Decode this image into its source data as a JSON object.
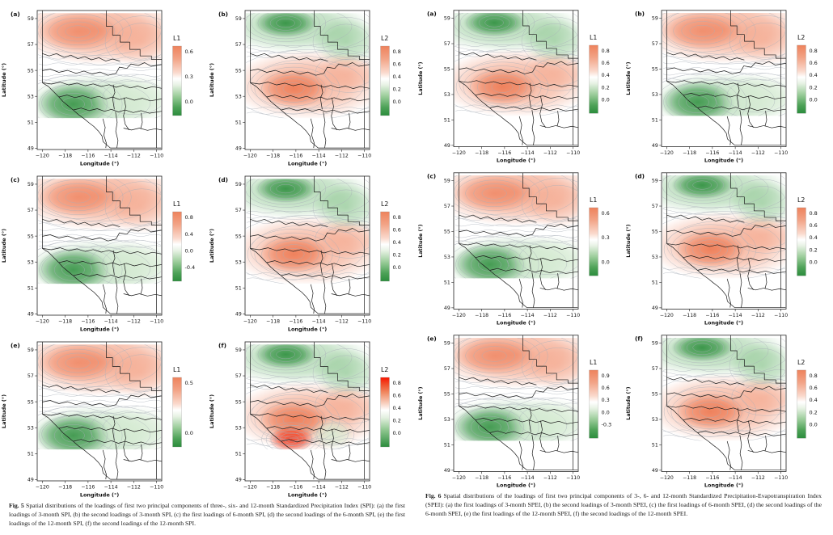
{
  "page": {
    "background": "#ffffff"
  },
  "colors": {
    "warm": "#F2997A",
    "warm_strong": "#EC6E44",
    "hot_red": "#F52000",
    "green": "#7FBF83",
    "green_deep": "#2E8F3E",
    "green_light": "#D8ECD4",
    "contour_line": "#A9AFB8",
    "boundary_line": "#1B1B1B",
    "axis": "#222222",
    "colorbar_normal": [
      "#EE825C",
      "#F2A386",
      "#FAD9CC",
      "#FFFFFF",
      "#E7F2E4",
      "#9CCD9B",
      "#4EA258",
      "#2B8C3C"
    ],
    "colorbar_hot": [
      "#F81500",
      "#F04F2A",
      "#F08A63",
      "#F7C9B7",
      "#FFFFFF",
      "#E3F0E0",
      "#96CA96",
      "#2B8C3C"
    ]
  },
  "axes": {
    "xlabel": "Longitude (°)",
    "ylabel": "Latitude (°)",
    "xticks": [
      "−120",
      "−118",
      "−116",
      "−114",
      "−112",
      "−110"
    ],
    "yticks": [
      "49",
      "51",
      "53",
      "55",
      "57",
      "59"
    ],
    "xtick_values": [
      -120,
      -118,
      -116,
      -114,
      -112,
      -110
    ],
    "ytick_values": [
      49,
      51,
      53,
      55,
      57,
      59
    ]
  },
  "chart_data": {
    "type": "heatmap",
    "note": "Two figures of six contour-map panels each; loading fields over longitude -120..-110, latitude 49..59"
  },
  "figures": [
    {
      "id": "fig5",
      "caption_label": "Fig. 5",
      "caption_text": "Spatial distributions of the loadings of first two principal components of three-, six- and 12-month Standardized Precipitation Index (SPI): (a) the first loadings of 3-month SPI, (b) the second loadings of 3-month SPI, (c) the first loadings of 6-month SPI, (d) the second loadings of the 6-month SPI, (e) the first loadings of the 12-month SPI, (f) the second loadings of the 12-month SPI.",
      "panels": [
        {
          "label": "(a)",
          "legend_title": "L1",
          "colorbar_ticks": [
            "0.6",
            "0.3",
            "0.0"
          ],
          "pattern": "warm-north",
          "cbar_style": "normal"
        },
        {
          "label": "(b)",
          "legend_title": "L2",
          "colorbar_ticks": [
            "0.8",
            "0.6",
            "0.4",
            "0.2",
            "0.0"
          ],
          "pattern": "warm-center",
          "cbar_style": "normal"
        },
        {
          "label": "(c)",
          "legend_title": "L1",
          "colorbar_ticks": [
            "0.8",
            "0.4",
            "0.0",
            "-0.4"
          ],
          "pattern": "warm-north",
          "cbar_style": "normal"
        },
        {
          "label": "(d)",
          "legend_title": "L2",
          "colorbar_ticks": [
            "0.8",
            "0.6",
            "0.4",
            "0.2",
            "0.0"
          ],
          "pattern": "warm-center",
          "cbar_style": "normal"
        },
        {
          "label": "(e)",
          "legend_title": "L1",
          "colorbar_ticks": [
            "0.5",
            "0.0"
          ],
          "pattern": "warm-north",
          "cbar_style": "normal"
        },
        {
          "label": "(f)",
          "legend_title": "L2",
          "colorbar_ticks": [
            "0.8",
            "0.6",
            "0.4",
            "0.2",
            "0.0"
          ],
          "pattern": "warm-center",
          "cbar_style": "hot",
          "extras": [
            "hot-spot",
            "green-pocket"
          ]
        }
      ]
    },
    {
      "id": "fig6",
      "caption_label": "Fig. 6",
      "caption_text": "Spatial distributions of the loadings of first two principal components of 3-, 6- and 12-month Standardized Precipitation-Evapotranspiration Index (SPEI): (a) the first loadings of 3-month SPEI, (b) the second loadings of 3-month SPEI, (c) the first loadings of 6-month SPEI, (d) the second loadings of the 6-month SPEI, (e) the first loadings of the 12-month SPEI, (f) the second loadings of the 12-month SPEI.",
      "panels": [
        {
          "label": "(a)",
          "legend_title": "L1",
          "colorbar_ticks": [
            "0.8",
            "0.6",
            "0.4",
            "0.2",
            "0.0"
          ],
          "pattern": "warm-center",
          "cbar_style": "normal"
        },
        {
          "label": "(b)",
          "legend_title": "L2",
          "colorbar_ticks": [
            "0.8",
            "0.6",
            "0.4",
            "0.2",
            "0.0"
          ],
          "pattern": "warm-north",
          "cbar_style": "normal"
        },
        {
          "label": "(c)",
          "legend_title": "L1",
          "colorbar_ticks": [
            "0.6",
            "0.3",
            "0.0"
          ],
          "pattern": "warm-north",
          "cbar_style": "normal"
        },
        {
          "label": "(d)",
          "legend_title": "L2",
          "colorbar_ticks": [
            "0.8",
            "0.6",
            "0.4",
            "0.2",
            "0.0"
          ],
          "pattern": "warm-center",
          "cbar_style": "normal"
        },
        {
          "label": "(e)",
          "legend_title": "L1",
          "colorbar_ticks": [
            "0.9",
            "0.6",
            "0.3",
            "0.0",
            "-0.3"
          ],
          "pattern": "warm-north",
          "cbar_style": "normal"
        },
        {
          "label": "(f)",
          "legend_title": "L2",
          "colorbar_ticks": [
            "0.8",
            "0.6",
            "0.4",
            "0.2",
            "0.0"
          ],
          "pattern": "warm-center",
          "cbar_style": "normal"
        }
      ]
    }
  ]
}
